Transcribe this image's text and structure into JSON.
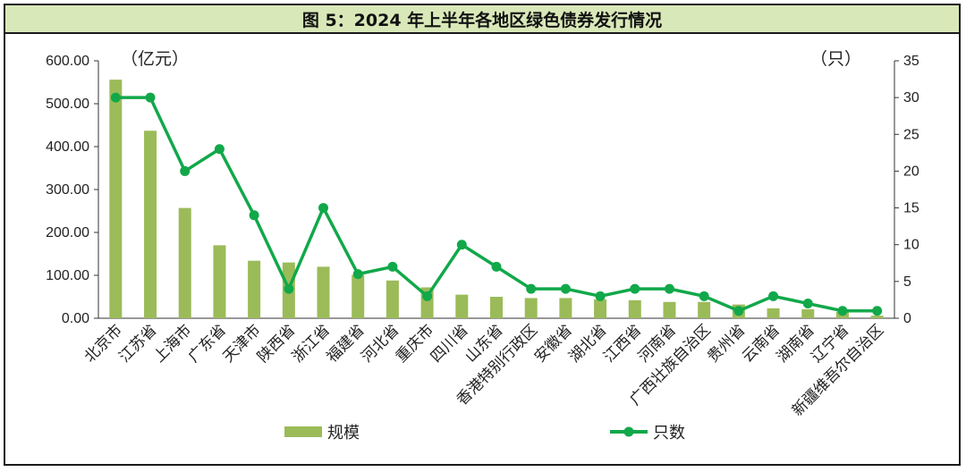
{
  "title": "图 5：2024 年上半年各地区绿色债券发行情况",
  "chart_data": {
    "type": "bar+line",
    "categories": [
      "北京市",
      "江苏省",
      "上海市",
      "广东省",
      "天津市",
      "陕西省",
      "浙江省",
      "福建省",
      "河北省",
      "重庆市",
      "四川省",
      "山东省",
      "香港特别行政区",
      "安徽省",
      "湖北省",
      "江西省",
      "河南省",
      "广西壮族自治区",
      "贵州省",
      "云南省",
      "湖南省",
      "辽宁省",
      "新疆维吾尔自治区"
    ],
    "series": [
      {
        "name": "规模",
        "type": "bar",
        "axis": "left",
        "color": "#9bbb59",
        "values": [
          556,
          437,
          257,
          170,
          134,
          130,
          120,
          101,
          88,
          72,
          55,
          50,
          47,
          47,
          44,
          42,
          38,
          38,
          32,
          23,
          21,
          15,
          6
        ]
      },
      {
        "name": "只数",
        "type": "line",
        "axis": "right",
        "color": "#11a84a",
        "values": [
          30,
          30,
          20,
          23,
          14,
          4,
          15,
          6,
          7,
          3,
          10,
          7,
          4,
          4,
          3,
          4,
          4,
          3,
          1,
          3,
          2,
          1,
          1
        ]
      }
    ],
    "left_axis": {
      "unit": "（亿元）",
      "min": 0,
      "max": 600,
      "ticks": [
        "0.00",
        "100.00",
        "200.00",
        "300.00",
        "400.00",
        "500.00",
        "600.00"
      ]
    },
    "right_axis": {
      "unit": "（只）",
      "min": 0,
      "max": 35,
      "ticks": [
        "0",
        "5",
        "10",
        "15",
        "20",
        "25",
        "30",
        "35"
      ]
    },
    "legend_placement": "bottom-center",
    "grid": false
  }
}
